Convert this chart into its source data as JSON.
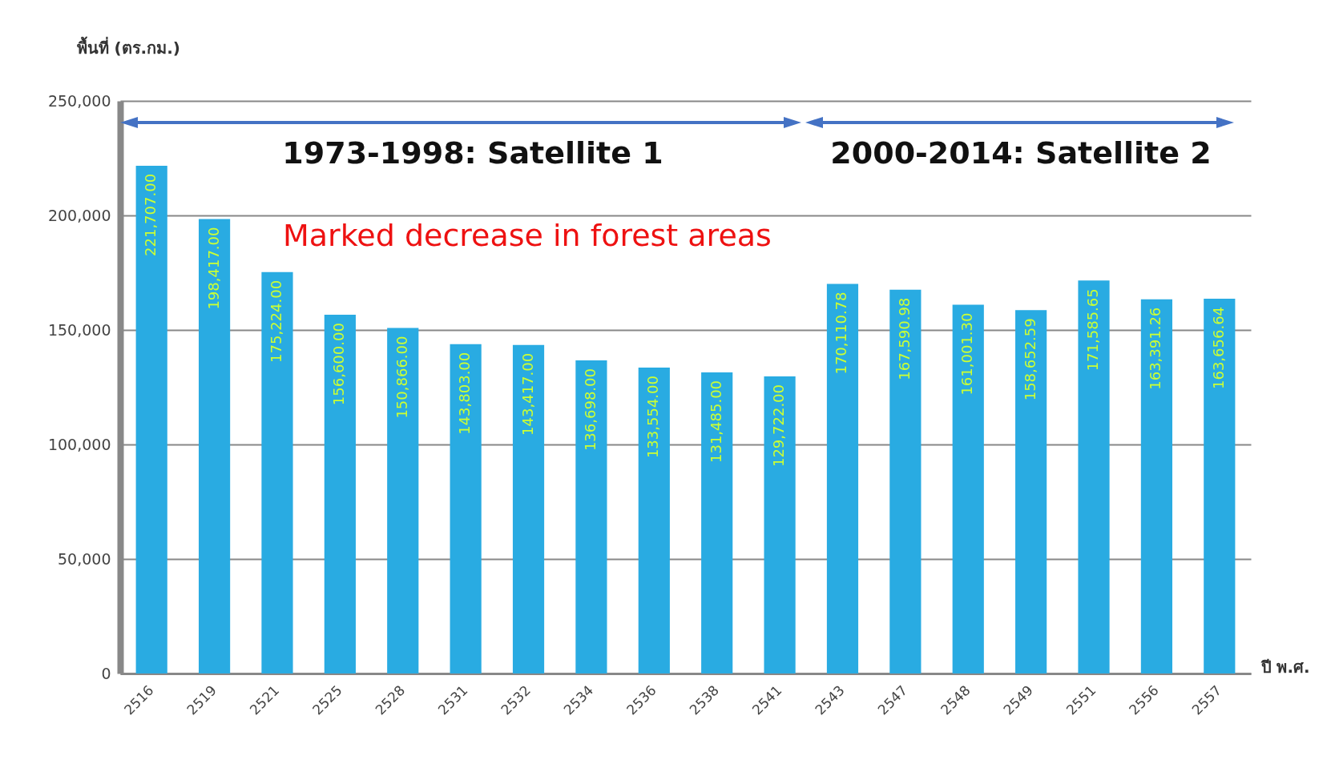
{
  "chart_data": {
    "type": "bar",
    "xlabel": "ปี พ.ศ.",
    "ylabel": "พื้นที่ (ตร.กม.)",
    "categories": [
      "2516",
      "2519",
      "2521",
      "2525",
      "2528",
      "2531",
      "2532",
      "2534",
      "2536",
      "2538",
      "2541",
      "2543",
      "2547",
      "2548",
      "2549",
      "2551",
      "2556",
      "2557"
    ],
    "values": [
      221707.0,
      198417.0,
      175224.0,
      156600.0,
      150866.0,
      143803.0,
      143417.0,
      136698.0,
      133554.0,
      131485.0,
      129722.0,
      170110.78,
      167590.98,
      161001.3,
      158652.59,
      171585.65,
      163391.26,
      163656.64
    ],
    "value_labels": [
      "221,707.00",
      "198,417.00",
      "175,224.00",
      "156,600.00",
      "150,866.00",
      "143,803.00",
      "143,417.00",
      "136,698.00",
      "133,554.00",
      "131,485.00",
      "129,722.00",
      "170,110.78",
      "167,590.98",
      "161,001.30",
      "158,652.59",
      "171,585.65",
      "163,391.26",
      "163,656.64"
    ],
    "color": "#29abe2",
    "ylim": [
      0,
      250000
    ],
    "yticks": [
      0,
      {
        "value": 50000,
        "label": "50,000"
      },
      {
        "value": 100000,
        "label": "100,000"
      },
      {
        "value": 150000,
        "label": "150,000"
      },
      {
        "value": 200000,
        "label": "200,000"
      },
      {
        "value": 250000,
        "label": "250,000"
      }
    ],
    "grid": "y",
    "annotations": [
      "1973-1998: Satellite 1",
      "2000-2014: Satellite 2",
      "Marked decrease in forest areas"
    ]
  }
}
